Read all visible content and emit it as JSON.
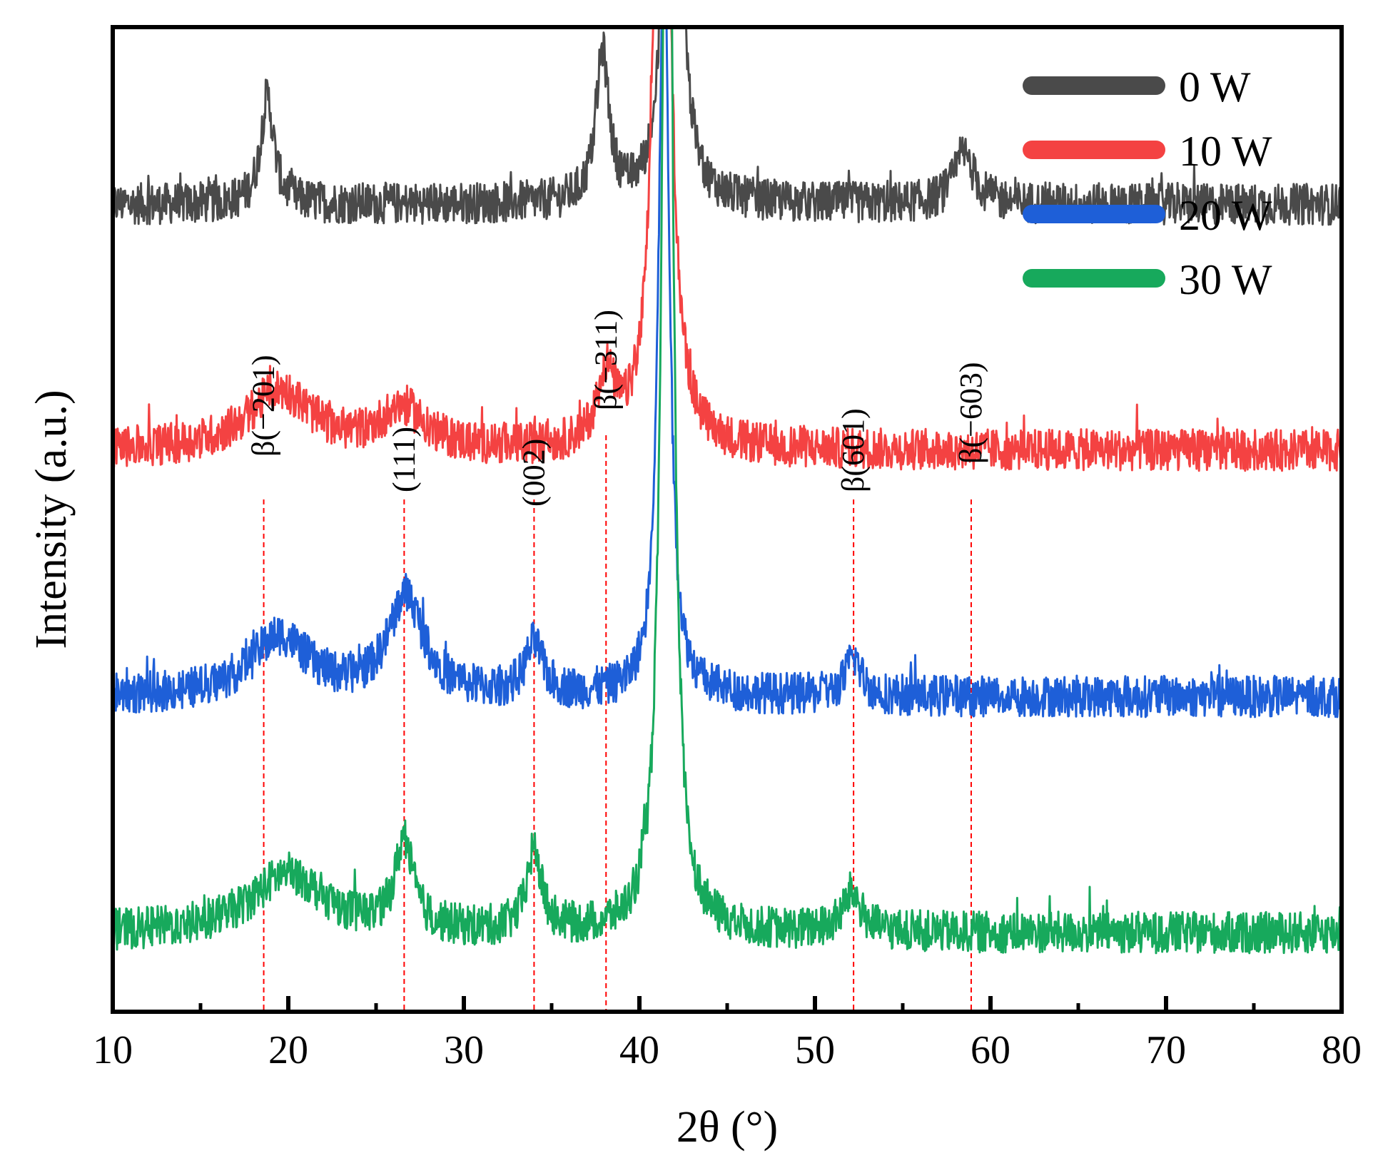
{
  "chart_data": {
    "type": "line",
    "title": "",
    "xlabel": "2θ (°)",
    "ylabel": "Intensity (a.u.)",
    "xlim": [
      10,
      80
    ],
    "xticks": [
      10,
      20,
      30,
      40,
      50,
      60,
      70,
      80
    ],
    "yticks_shown": false,
    "legend_position": "top-right",
    "series": [
      {
        "name": "0 W",
        "color": "#4a4a4a",
        "baseline": 0.82,
        "offset_rank": 0,
        "peaks": [
          {
            "x": 18.8,
            "h": 0.11,
            "w": 0.45
          },
          {
            "x": 37.9,
            "h": 0.15,
            "w": 0.45
          },
          {
            "x": 41.9,
            "h": 1.0,
            "w": 0.35
          },
          {
            "x": 58.5,
            "h": 0.05,
            "w": 0.7
          }
        ],
        "noise": 0.03
      },
      {
        "name": "10 W",
        "color": "#f44242",
        "baseline": 0.57,
        "offset_rank": 1,
        "peaks": [
          {
            "x": 19.5,
            "h": 0.06,
            "w": 2.2
          },
          {
            "x": 26.5,
            "h": 0.04,
            "w": 1.5
          },
          {
            "x": 38.1,
            "h": 0.07,
            "w": 0.6
          },
          {
            "x": 41.3,
            "h": 1.0,
            "w": 0.45
          }
        ],
        "noise": 0.03
      },
      {
        "name": "20 W",
        "color": "#1e5fd8",
        "baseline": 0.32,
        "offset_rank": 2,
        "peaks": [
          {
            "x": 19.5,
            "h": 0.06,
            "w": 2.0
          },
          {
            "x": 26.7,
            "h": 0.1,
            "w": 1.2
          },
          {
            "x": 34.0,
            "h": 0.05,
            "w": 0.6
          },
          {
            "x": 41.4,
            "h": 0.8,
            "w": 0.35
          },
          {
            "x": 52.2,
            "h": 0.04,
            "w": 0.5
          }
        ],
        "noise": 0.03
      },
      {
        "name": "30 W",
        "color": "#17a95c",
        "baseline": 0.08,
        "offset_rank": 3,
        "peaks": [
          {
            "x": 20.0,
            "h": 0.06,
            "w": 2.5
          },
          {
            "x": 26.6,
            "h": 0.09,
            "w": 0.6
          },
          {
            "x": 34.0,
            "h": 0.08,
            "w": 0.5
          },
          {
            "x": 41.6,
            "h": 1.4,
            "w": 0.35
          },
          {
            "x": 52.1,
            "h": 0.04,
            "w": 0.6
          }
        ],
        "noise": 0.03
      }
    ],
    "reference_lines": [
      {
        "x": 18.6,
        "label": "β(−201)"
      },
      {
        "x": 26.6,
        "label": "(111)"
      },
      {
        "x": 34.0,
        "label": "(002)"
      },
      {
        "x": 38.1,
        "label": "β(−311)"
      },
      {
        "x": 52.2,
        "label": "β(601)"
      },
      {
        "x": 58.9,
        "label": "β(−603)"
      }
    ],
    "reference_line_color": "#ff0000"
  }
}
